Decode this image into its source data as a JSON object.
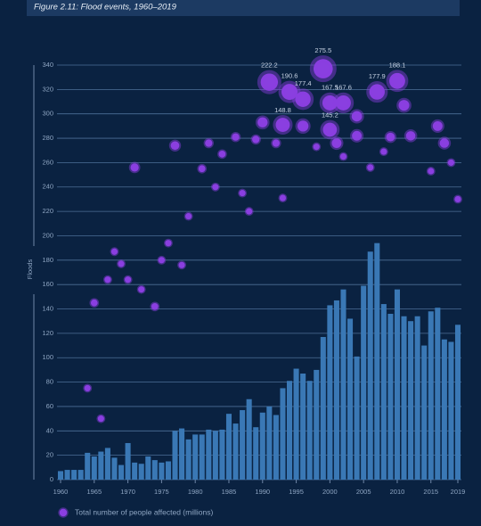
{
  "chart_data": {
    "type": "combo",
    "title": "Figure 2.11: Flood events, 1960–2019",
    "y_label": "Floods",
    "xlim": [
      1960,
      2019
    ],
    "xticks": [
      1960,
      1965,
      1970,
      1975,
      1980,
      1985,
      1990,
      1995,
      2000,
      2005,
      2010,
      2015,
      2019
    ],
    "ylim": [
      0,
      340
    ],
    "yticks": [
      0,
      20,
      40,
      60,
      80,
      100,
      120,
      140,
      160,
      180,
      200,
      220,
      240,
      260,
      280,
      300,
      320,
      340
    ],
    "grid": true,
    "legend": "bottom-left",
    "series": [
      {
        "type": "bar",
        "color": "#3a78b5",
        "x": [
          1960,
          1961,
          1962,
          1963,
          1964,
          1965,
          1966,
          1967,
          1968,
          1969,
          1970,
          1971,
          1972,
          1973,
          1974,
          1975,
          1976,
          1977,
          1978,
          1979,
          1980,
          1981,
          1982,
          1983,
          1984,
          1985,
          1986,
          1987,
          1988,
          1989,
          1990,
          1991,
          1992,
          1993,
          1994,
          1995,
          1996,
          1997,
          1998,
          1999,
          2000,
          2001,
          2002,
          2003,
          2004,
          2005,
          2006,
          2007,
          2008,
          2009,
          2010,
          2011,
          2012,
          2013,
          2014,
          2015,
          2016,
          2017,
          2018,
          2019
        ],
        "values": [
          7,
          8,
          8,
          8,
          22,
          19,
          23,
          26,
          18,
          12,
          30,
          14,
          13,
          19,
          16,
          14,
          15,
          40,
          42,
          33,
          37,
          37,
          41,
          40,
          41,
          54,
          46,
          57,
          66,
          43,
          55,
          60,
          53,
          75,
          81,
          91,
          87,
          81,
          90,
          117,
          143,
          147,
          156,
          132,
          101,
          159,
          187,
          194,
          144,
          136,
          156,
          134,
          130,
          134,
          110,
          138,
          141,
          115,
          113,
          127
        ]
      },
      {
        "type": "bubble",
        "name": "Total number of people affected (millions)",
        "color": "#8a3fe0",
        "x": [
          1964,
          1965,
          1966,
          1967,
          1968,
          1969,
          1970,
          1971,
          1972,
          1974,
          1975,
          1976,
          1977,
          1978,
          1979,
          1981,
          1982,
          1983,
          1984,
          1986,
          1987,
          1988,
          1989,
          1990,
          1991,
          1992,
          1993,
          1993,
          1994,
          1996,
          1996,
          1998,
          1999,
          2000,
          2000,
          2001,
          2002,
          2002,
          2004,
          2004,
          2006,
          2007,
          2008,
          2009,
          2010,
          2011,
          2012,
          2015,
          2016,
          2017,
          2018,
          2019
        ],
        "values": [
          75,
          145,
          50,
          164,
          187,
          177,
          164,
          256,
          156,
          142,
          180,
          194,
          274,
          176,
          216,
          255,
          276,
          240,
          267,
          281,
          235,
          220,
          279,
          293,
          326,
          276,
          291,
          231,
          318,
          290,
          312,
          273,
          337,
          287,
          309,
          276,
          265,
          309,
          298,
          282,
          256,
          318,
          269,
          281,
          327,
          307,
          282,
          253,
          290,
          276,
          260,
          230
        ],
        "sizes": [
          30,
          35,
          30,
          30,
          30,
          30,
          30,
          50,
          30,
          35,
          30,
          30,
          55,
          30,
          30,
          35,
          40,
          30,
          35,
          40,
          30,
          30,
          40,
          75,
          222.2,
          40,
          148.8,
          30,
          190.6,
          90,
          177.4,
          30,
          275.5,
          145.2,
          167.5,
          70,
          30,
          167.6,
          80,
          70,
          30,
          177.9,
          30,
          55,
          188.1,
          85,
          65,
          30,
          70,
          65,
          30,
          30
        ],
        "value_labels": [
          null,
          null,
          null,
          null,
          null,
          null,
          null,
          null,
          null,
          null,
          null,
          null,
          null,
          null,
          null,
          null,
          null,
          null,
          null,
          null,
          null,
          null,
          null,
          null,
          "222.2",
          null,
          "148.8",
          null,
          "190.6",
          null,
          "177.4",
          null,
          "275.5",
          "145.2",
          "167.5",
          null,
          null,
          "167.6",
          null,
          null,
          null,
          "177.9",
          null,
          null,
          "188.1",
          null,
          null,
          null,
          null,
          null,
          null,
          null
        ]
      }
    ]
  }
}
